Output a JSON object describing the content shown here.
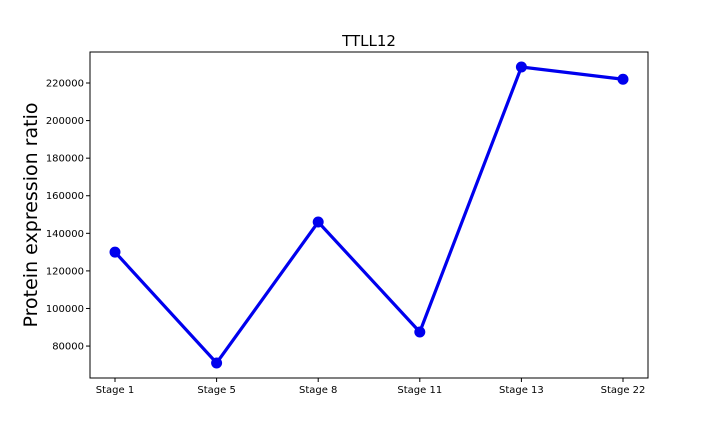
{
  "chart_data": {
    "type": "line",
    "title": "TTLL12",
    "xlabel": "",
    "ylabel": "Protein expression ratio",
    "categories": [
      "Stage 1",
      "Stage 5",
      "Stage 8",
      "Stage 11",
      "Stage 13",
      "Stage 22"
    ],
    "series": [
      {
        "values": [
          130000,
          71000,
          146000,
          87500,
          228500,
          222000
        ],
        "color": "#0000ee"
      }
    ],
    "ylim": [
      63000,
      236500
    ],
    "yticks": [
      80000,
      100000,
      120000,
      140000,
      160000,
      180000,
      200000,
      220000
    ],
    "grid": false,
    "legend": "none"
  }
}
